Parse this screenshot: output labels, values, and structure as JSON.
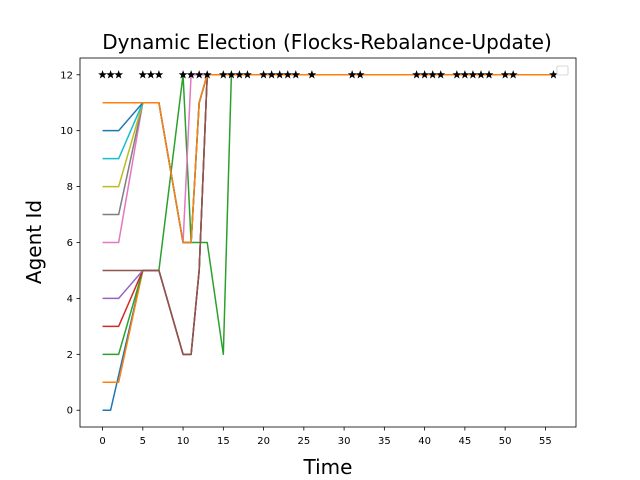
{
  "chart_data": {
    "type": "line",
    "title": "Dynamic Election (Flocks-Rebalance-Update)",
    "xlabel": "Time",
    "ylabel": "Agent Id",
    "xlim": [
      -2.8,
      58.8
    ],
    "ylim": [
      -0.6,
      12.6
    ],
    "xticks": [
      0,
      5,
      10,
      15,
      20,
      25,
      30,
      35,
      40,
      45,
      50,
      55
    ],
    "yticks": [
      0,
      2,
      4,
      6,
      8,
      10,
      12
    ],
    "grid": false,
    "legend": "top-right, empty",
    "series": [
      {
        "color": "#1f77b4",
        "x": [
          0,
          1,
          5,
          7,
          10,
          11,
          12,
          13,
          56
        ],
        "y": [
          0,
          0,
          5,
          5,
          2,
          2,
          5,
          12,
          12
        ]
      },
      {
        "color": "#ff7f0e",
        "x": [
          0,
          2,
          5,
          7,
          10,
          11,
          12,
          13,
          56
        ],
        "y": [
          1,
          1,
          5,
          5,
          2,
          2,
          5,
          12,
          12
        ]
      },
      {
        "color": "#2ca02c",
        "x": [
          0,
          2,
          5,
          7,
          10,
          11,
          13,
          15,
          16,
          56
        ],
        "y": [
          2,
          2,
          5,
          5,
          12,
          6,
          6,
          2,
          12,
          12
        ]
      },
      {
        "color": "#d62728",
        "x": [
          0,
          2,
          5,
          7,
          10,
          11,
          12,
          13,
          56
        ],
        "y": [
          3,
          3,
          5,
          5,
          2,
          2,
          5,
          12,
          12
        ]
      },
      {
        "color": "#9467bd",
        "x": [
          0,
          2,
          5,
          7,
          10,
          11,
          12,
          13,
          56
        ],
        "y": [
          4,
          4,
          5,
          5,
          2,
          2,
          5,
          12,
          12
        ]
      },
      {
        "color": "#8c564b",
        "x": [
          0,
          2,
          5,
          7,
          10,
          11,
          12,
          13,
          56
        ],
        "y": [
          5,
          5,
          5,
          5,
          2,
          2,
          5,
          12,
          12
        ]
      },
      {
        "color": "#e377c2",
        "x": [
          0,
          2,
          5,
          7,
          10,
          11,
          56
        ],
        "y": [
          6,
          6,
          11,
          11,
          6,
          12,
          12
        ]
      },
      {
        "color": "#7f7f7f",
        "x": [
          0,
          2,
          5,
          7,
          10,
          11,
          12,
          13,
          56
        ],
        "y": [
          7,
          7,
          11,
          11,
          6,
          6,
          11,
          12,
          12
        ]
      },
      {
        "color": "#bcbd22",
        "x": [
          0,
          2,
          5,
          7,
          10,
          11,
          12,
          13,
          56
        ],
        "y": [
          8,
          8,
          11,
          11,
          6,
          6,
          11,
          12,
          12
        ]
      },
      {
        "color": "#17becf",
        "x": [
          0,
          2,
          5,
          7,
          10,
          11,
          12,
          13,
          56
        ],
        "y": [
          9,
          9,
          11,
          11,
          6,
          6,
          11,
          12,
          12
        ]
      },
      {
        "color": "#1f77b4",
        "x": [
          0,
          2,
          5,
          7,
          10,
          11,
          12,
          13,
          56
        ],
        "y": [
          10,
          10,
          11,
          11,
          6,
          6,
          11,
          12,
          12
        ]
      },
      {
        "color": "#ff7f0e",
        "x": [
          0,
          2,
          5,
          7,
          10,
          11,
          12,
          13,
          56
        ],
        "y": [
          11,
          11,
          11,
          11,
          6,
          6,
          11,
          12,
          12
        ]
      }
    ],
    "markers": {
      "color": "#000000",
      "symbol": "star",
      "y": 12,
      "x": [
        0,
        1,
        2,
        5,
        6,
        7,
        10,
        11,
        12,
        13,
        15,
        16,
        17,
        18,
        20,
        21,
        22,
        23,
        24,
        26,
        31,
        32,
        39,
        40,
        41,
        42,
        44,
        45,
        46,
        47,
        48,
        50,
        51,
        56
      ]
    }
  }
}
